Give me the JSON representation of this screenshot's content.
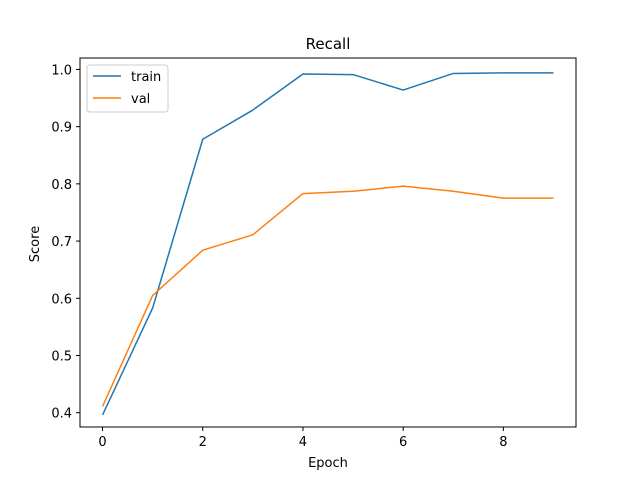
{
  "chart_data": {
    "type": "line",
    "title": "Recall",
    "xlabel": "Epoch",
    "ylabel": "Score",
    "x": [
      0,
      1,
      2,
      3,
      4,
      5,
      6,
      7,
      8,
      9
    ],
    "xlim": [
      -0.45,
      9.45
    ],
    "ylim": [
      0.375,
      1.02
    ],
    "xticks": [
      0,
      2,
      4,
      6,
      8
    ],
    "yticks": [
      0.4,
      0.5,
      0.6,
      0.7,
      0.8,
      0.9,
      1.0
    ],
    "ytick_labels": [
      "0.4",
      "0.5",
      "0.6",
      "0.7",
      "0.8",
      "0.9",
      "1.0"
    ],
    "grid": false,
    "legend_position": "top-left",
    "series": [
      {
        "name": "train",
        "color": "#1f77b4",
        "values": [
          0.396,
          0.583,
          0.878,
          0.929,
          0.992,
          0.991,
          0.964,
          0.993,
          0.994,
          0.994
        ]
      },
      {
        "name": "val",
        "color": "#ff7f0e",
        "values": [
          0.411,
          0.605,
          0.684,
          0.711,
          0.783,
          0.787,
          0.796,
          0.787,
          0.775,
          0.775
        ]
      }
    ]
  }
}
